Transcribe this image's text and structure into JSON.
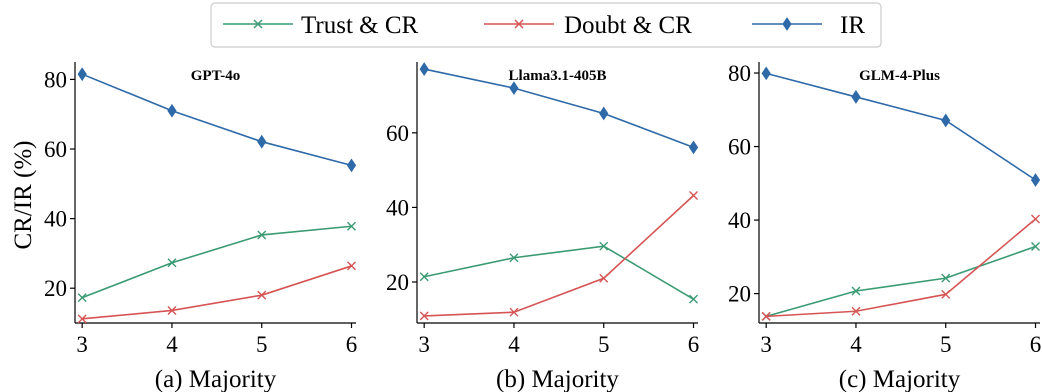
{
  "legend": {
    "entries": [
      {
        "label": "Trust & CR",
        "color": "#3a9a72",
        "marker": "x"
      },
      {
        "label": "Doubt & CR",
        "color": "#d65454",
        "marker": "x"
      },
      {
        "label": "IR",
        "color": "#2e69a8",
        "marker": "diamond"
      }
    ]
  },
  "y_axis_label": "CR/IR (%)",
  "chart_data": [
    {
      "type": "line",
      "title": "GPT-4o",
      "xlabel": "(a) Majority",
      "x": [
        3,
        4,
        5,
        6
      ],
      "xlim": [
        2.92,
        6.05
      ],
      "ylim": [
        10,
        85
      ],
      "yticks": [
        20,
        40,
        60,
        80
      ],
      "series": [
        {
          "name": "Trust & CR",
          "values": [
            17.3,
            27.3,
            35.3,
            37.8
          ]
        },
        {
          "name": "Doubt & CR",
          "values": [
            11.2,
            13.6,
            18.0,
            26.4
          ]
        },
        {
          "name": "IR",
          "values": [
            81.5,
            71.0,
            62.1,
            55.3
          ]
        }
      ],
      "grid": false
    },
    {
      "type": "line",
      "title": "Llama3.1-405B",
      "xlabel": "(b) Majority",
      "x": [
        3,
        4,
        5,
        6
      ],
      "xlim": [
        2.92,
        6.05
      ],
      "ylim": [
        9,
        79
      ],
      "yticks": [
        20,
        40,
        60
      ],
      "series": [
        {
          "name": "Trust & CR",
          "values": [
            21.4,
            26.5,
            29.6,
            15.4
          ]
        },
        {
          "name": "Doubt & CR",
          "values": [
            10.9,
            11.9,
            21.0,
            43.2
          ]
        },
        {
          "name": "IR",
          "values": [
            77.1,
            72.0,
            65.2,
            56.1
          ]
        }
      ],
      "grid": false
    },
    {
      "type": "line",
      "title": "GLM-4-Plus",
      "xlabel": "(c) Majority",
      "x": [
        3,
        4,
        5,
        6
      ],
      "xlim": [
        2.92,
        6.05
      ],
      "ylim": [
        12,
        83
      ],
      "yticks": [
        20,
        40,
        60,
        80
      ],
      "series": [
        {
          "name": "Trust & CR",
          "values": [
            13.8,
            20.7,
            24.2,
            32.8
          ]
        },
        {
          "name": "Doubt & CR",
          "values": [
            13.8,
            15.2,
            19.8,
            40.3
          ]
        },
        {
          "name": "IR",
          "values": [
            79.9,
            73.5,
            67.1,
            50.9
          ]
        }
      ],
      "grid": false
    }
  ]
}
